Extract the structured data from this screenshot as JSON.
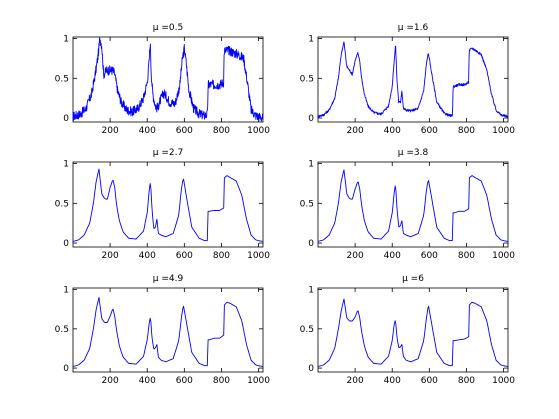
{
  "figure": {
    "background": "#ffffff",
    "line_color": "#0000ff",
    "axis_color": "#000000"
  },
  "chart_data": [
    {
      "type": "line",
      "title": "μ =0.5",
      "xlabel": "",
      "ylabel": "",
      "xlim": [
        0,
        1024
      ],
      "ylim": [
        -0.05,
        1.02
      ],
      "xticks": [
        200,
        400,
        600,
        800,
        1000
      ],
      "yticks": [
        0,
        0.5,
        1
      ],
      "xtick_labels": [
        "200",
        "400",
        "600",
        "800",
        "1000"
      ],
      "ytick_labels": [
        "0",
        "0.5",
        "1"
      ],
      "grid": false,
      "noise": 0.06,
      "series": [
        {
          "x": [
            0,
            40,
            70,
            100,
            120,
            135,
            145,
            155,
            165,
            180,
            200,
            215,
            225,
            240,
            260,
            290,
            320,
            350,
            380,
            400,
            410,
            416,
            422,
            430,
            445,
            455,
            470,
            490,
            520,
            550,
            575,
            590,
            600,
            610,
            625,
            650,
            680,
            710,
            725,
            728,
            735,
            760,
            790,
            812,
            815,
            840,
            870,
            890,
            920,
            940,
            960,
            985,
            1000,
            1024
          ],
          "y": [
            0.02,
            0.05,
            0.12,
            0.3,
            0.55,
            0.78,
            1.0,
            0.92,
            0.55,
            0.6,
            0.6,
            0.6,
            0.55,
            0.35,
            0.2,
            0.1,
            0.08,
            0.12,
            0.25,
            0.45,
            0.7,
            0.96,
            0.55,
            0.3,
            0.15,
            0.12,
            0.22,
            0.32,
            0.2,
            0.18,
            0.4,
            0.75,
            0.88,
            0.7,
            0.35,
            0.12,
            0.05,
            0.03,
            0.05,
            0.42,
            0.42,
            0.42,
            0.42,
            0.45,
            0.85,
            0.85,
            0.82,
            0.8,
            0.75,
            0.45,
            0.1,
            0.03,
            0.02,
            0.0
          ]
        }
      ]
    },
    {
      "type": "line",
      "title": "μ =1.6",
      "xlabel": "",
      "ylabel": "",
      "xlim": [
        0,
        1024
      ],
      "ylim": [
        -0.05,
        1.02
      ],
      "xticks": [
        200,
        400,
        600,
        800,
        1000
      ],
      "yticks": [
        0,
        0.5,
        1
      ],
      "xtick_labels": [
        "200",
        "400",
        "600",
        "800",
        "1000"
      ],
      "ytick_labels": [
        "0",
        "0.5",
        "1"
      ],
      "grid": false,
      "noise": 0.015,
      "series": [
        {
          "x": [
            0,
            30,
            60,
            90,
            110,
            125,
            140,
            155,
            170,
            185,
            200,
            215,
            225,
            235,
            250,
            270,
            300,
            340,
            380,
            400,
            410,
            418,
            425,
            435,
            445,
            452,
            460,
            475,
            500,
            540,
            570,
            585,
            595,
            610,
            640,
            680,
            710,
            725,
            728,
            735,
            760,
            790,
            812,
            815,
            830,
            850,
            880,
            910,
            935,
            960,
            985,
            1000,
            1024
          ],
          "y": [
            0.02,
            0.04,
            0.1,
            0.25,
            0.5,
            0.8,
            0.96,
            0.65,
            0.6,
            0.55,
            0.72,
            0.82,
            0.72,
            0.5,
            0.3,
            0.15,
            0.07,
            0.05,
            0.15,
            0.4,
            0.7,
            0.93,
            0.5,
            0.2,
            0.2,
            0.35,
            0.12,
            0.1,
            0.09,
            0.12,
            0.35,
            0.7,
            0.82,
            0.6,
            0.2,
            0.06,
            0.03,
            0.03,
            0.4,
            0.4,
            0.42,
            0.42,
            0.45,
            0.85,
            0.88,
            0.85,
            0.8,
            0.6,
            0.3,
            0.1,
            0.04,
            0.03,
            0.02
          ]
        }
      ]
    },
    {
      "type": "line",
      "title": "μ =2.7",
      "xlabel": "",
      "ylabel": "",
      "xlim": [
        0,
        1024
      ],
      "ylim": [
        -0.05,
        1.02
      ],
      "xticks": [
        200,
        400,
        600,
        800,
        1000
      ],
      "yticks": [
        0,
        0.5,
        1
      ],
      "xtick_labels": [
        "200",
        "400",
        "600",
        "800",
        "1000"
      ],
      "ytick_labels": [
        "0",
        "0.5",
        "1"
      ],
      "grid": false,
      "noise": 0.0,
      "series": [
        {
          "x": [
            0,
            30,
            60,
            90,
            110,
            125,
            140,
            155,
            170,
            185,
            200,
            215,
            225,
            235,
            250,
            270,
            300,
            340,
            380,
            400,
            410,
            418,
            425,
            435,
            445,
            452,
            460,
            475,
            500,
            540,
            570,
            585,
            595,
            610,
            640,
            680,
            710,
            725,
            728,
            735,
            760,
            790,
            812,
            815,
            830,
            850,
            880,
            910,
            935,
            960,
            985,
            1000,
            1024
          ],
          "y": [
            0.02,
            0.04,
            0.1,
            0.25,
            0.5,
            0.78,
            0.93,
            0.62,
            0.56,
            0.55,
            0.7,
            0.8,
            0.7,
            0.48,
            0.28,
            0.14,
            0.06,
            0.05,
            0.15,
            0.38,
            0.65,
            0.78,
            0.45,
            0.18,
            0.2,
            0.3,
            0.12,
            0.1,
            0.08,
            0.12,
            0.35,
            0.7,
            0.82,
            0.6,
            0.2,
            0.06,
            0.03,
            0.03,
            0.4,
            0.4,
            0.41,
            0.41,
            0.44,
            0.82,
            0.85,
            0.82,
            0.78,
            0.6,
            0.3,
            0.1,
            0.04,
            0.03,
            0.02
          ]
        }
      ]
    },
    {
      "type": "line",
      "title": "μ =3.8",
      "xlabel": "",
      "ylabel": "",
      "xlim": [
        0,
        1024
      ],
      "ylim": [
        -0.05,
        1.02
      ],
      "xticks": [
        200,
        400,
        600,
        800,
        1000
      ],
      "yticks": [
        0,
        0.5,
        1
      ],
      "xtick_labels": [
        "200",
        "400",
        "600",
        "800",
        "1000"
      ],
      "ytick_labels": [
        "0",
        "0.5",
        "1"
      ],
      "grid": false,
      "noise": 0.0,
      "series": [
        {
          "x": [
            0,
            30,
            60,
            90,
            110,
            125,
            140,
            155,
            170,
            185,
            200,
            215,
            225,
            235,
            250,
            270,
            300,
            340,
            380,
            400,
            410,
            418,
            425,
            435,
            445,
            452,
            460,
            475,
            500,
            540,
            570,
            585,
            595,
            610,
            640,
            680,
            710,
            725,
            728,
            735,
            760,
            790,
            812,
            815,
            830,
            850,
            880,
            910,
            935,
            960,
            985,
            1000,
            1024
          ],
          "y": [
            0.02,
            0.04,
            0.1,
            0.25,
            0.5,
            0.78,
            0.92,
            0.62,
            0.56,
            0.55,
            0.68,
            0.78,
            0.68,
            0.48,
            0.28,
            0.14,
            0.06,
            0.05,
            0.15,
            0.38,
            0.62,
            0.75,
            0.45,
            0.2,
            0.22,
            0.28,
            0.12,
            0.1,
            0.08,
            0.12,
            0.35,
            0.68,
            0.8,
            0.6,
            0.2,
            0.06,
            0.03,
            0.03,
            0.38,
            0.38,
            0.4,
            0.4,
            0.43,
            0.82,
            0.85,
            0.82,
            0.78,
            0.6,
            0.3,
            0.1,
            0.04,
            0.03,
            0.02
          ]
        }
      ]
    },
    {
      "type": "line",
      "title": "μ =4.9",
      "xlabel": "",
      "ylabel": "",
      "xlim": [
        0,
        1024
      ],
      "ylim": [
        -0.05,
        1.02
      ],
      "xticks": [
        200,
        400,
        600,
        800,
        1000
      ],
      "yticks": [
        0,
        0.5,
        1
      ],
      "xtick_labels": [
        "200",
        "400",
        "600",
        "800",
        "1000"
      ],
      "ytick_labels": [
        "0",
        "0.5",
        "1"
      ],
      "grid": false,
      "noise": 0.0,
      "series": [
        {
          "x": [
            0,
            30,
            60,
            90,
            110,
            125,
            140,
            155,
            170,
            185,
            200,
            215,
            225,
            235,
            250,
            270,
            300,
            340,
            380,
            400,
            410,
            418,
            425,
            435,
            445,
            452,
            460,
            475,
            500,
            540,
            570,
            585,
            595,
            610,
            640,
            680,
            710,
            725,
            728,
            735,
            760,
            790,
            812,
            815,
            830,
            850,
            880,
            910,
            935,
            960,
            985,
            1000,
            1024
          ],
          "y": [
            0.02,
            0.04,
            0.1,
            0.25,
            0.5,
            0.75,
            0.9,
            0.63,
            0.58,
            0.58,
            0.66,
            0.76,
            0.66,
            0.48,
            0.28,
            0.14,
            0.06,
            0.05,
            0.15,
            0.36,
            0.56,
            0.66,
            0.4,
            0.24,
            0.26,
            0.3,
            0.14,
            0.1,
            0.08,
            0.12,
            0.35,
            0.66,
            0.8,
            0.6,
            0.2,
            0.06,
            0.03,
            0.03,
            0.36,
            0.36,
            0.38,
            0.38,
            0.42,
            0.8,
            0.84,
            0.82,
            0.78,
            0.6,
            0.3,
            0.1,
            0.04,
            0.03,
            0.02
          ]
        }
      ]
    },
    {
      "type": "line",
      "title": "μ =6",
      "xlabel": "",
      "ylabel": "",
      "xlim": [
        0,
        1024
      ],
      "ylim": [
        -0.05,
        1.02
      ],
      "xticks": [
        200,
        400,
        600,
        800,
        1000
      ],
      "yticks": [
        0,
        0.5,
        1
      ],
      "xtick_labels": [
        "200",
        "400",
        "600",
        "800",
        "1000"
      ],
      "ytick_labels": [
        "0",
        "0.5",
        "1"
      ],
      "grid": false,
      "noise": 0.0,
      "series": [
        {
          "x": [
            0,
            30,
            60,
            90,
            110,
            125,
            140,
            155,
            170,
            185,
            200,
            215,
            225,
            235,
            250,
            270,
            300,
            340,
            380,
            400,
            410,
            418,
            425,
            435,
            445,
            452,
            460,
            475,
            500,
            540,
            570,
            585,
            595,
            610,
            640,
            680,
            710,
            725,
            728,
            735,
            760,
            790,
            812,
            815,
            830,
            850,
            880,
            910,
            935,
            960,
            985,
            1000,
            1024
          ],
          "y": [
            0.02,
            0.04,
            0.1,
            0.25,
            0.5,
            0.73,
            0.88,
            0.64,
            0.6,
            0.6,
            0.65,
            0.74,
            0.64,
            0.47,
            0.28,
            0.14,
            0.06,
            0.05,
            0.15,
            0.35,
            0.55,
            0.62,
            0.4,
            0.26,
            0.27,
            0.3,
            0.15,
            0.1,
            0.08,
            0.12,
            0.35,
            0.65,
            0.8,
            0.6,
            0.2,
            0.06,
            0.03,
            0.03,
            0.35,
            0.35,
            0.36,
            0.37,
            0.4,
            0.8,
            0.84,
            0.82,
            0.78,
            0.6,
            0.3,
            0.1,
            0.04,
            0.03,
            0.02
          ]
        }
      ]
    }
  ]
}
